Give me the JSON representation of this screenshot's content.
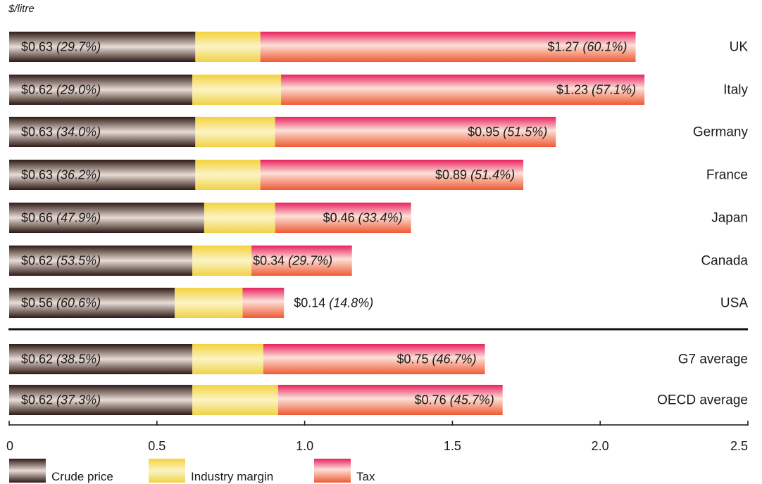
{
  "chart_data": {
    "type": "bar",
    "orientation": "horizontal",
    "stacked": true,
    "unit_label": "$/litre",
    "categories": [
      "UK",
      "Italy",
      "Germany",
      "France",
      "Japan",
      "Canada",
      "USA",
      "G7 average",
      "OECD average"
    ],
    "series": [
      {
        "name": "Crude price",
        "color": "#5a3b33",
        "values": [
          0.63,
          0.62,
          0.63,
          0.63,
          0.66,
          0.62,
          0.56,
          0.62,
          0.62
        ],
        "labels": [
          "$0.63",
          "$0.62",
          "$0.63",
          "$0.63",
          "$0.66",
          "$0.62",
          "$0.56",
          "$0.62",
          "$0.62"
        ],
        "pct_labels": [
          "(29.7%)",
          "(29.0%)",
          "(34.0%)",
          "(36.2%)",
          "(47.9%)",
          "(53.5%)",
          "(60.6%)",
          "(38.5%)",
          "(37.3%)"
        ]
      },
      {
        "name": "Industry margin",
        "color": "#f2dc6a",
        "values": [
          0.22,
          0.3,
          0.27,
          0.22,
          0.24,
          0.2,
          0.23,
          0.24,
          0.29
        ]
      },
      {
        "name": "Tax",
        "color": "#f0605a",
        "values": [
          1.27,
          1.23,
          0.95,
          0.89,
          0.46,
          0.34,
          0.14,
          0.75,
          0.76
        ],
        "labels": [
          "$1.27",
          "$1.23",
          "$0.95",
          "$0.89",
          "$0.46",
          "$0.34",
          "$0.14",
          "$0.75",
          "$0.76"
        ],
        "pct_labels": [
          "(60.1%)",
          "(57.1%)",
          "(51.5%)",
          "(51.4%)",
          "(33.4%)",
          "(29.7%)",
          "(14.8%)",
          "(46.7%)",
          "(45.7%)"
        ]
      }
    ],
    "xlim": [
      0,
      2.5
    ],
    "xticks": [
      0,
      0.5,
      1.0,
      1.5,
      2.0,
      2.5
    ],
    "xtick_labels": [
      "0",
      "0.5",
      "1.0",
      "1.5",
      "2.0",
      "2.5"
    ],
    "legend": [
      "Crude price",
      "Industry margin",
      "Tax"
    ],
    "legend_position": "bottom-left",
    "grid": false
  }
}
